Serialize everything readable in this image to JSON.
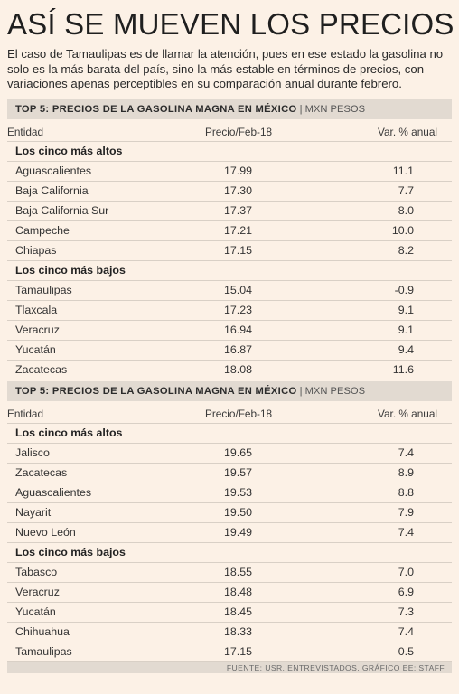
{
  "title": "ASÍ SE MUEVEN LOS PRECIOS",
  "intro": "El caso de Tamaulipas es de llamar la atención, pues en ese estado la gasolina no solo es la más barata del país, sino la más estable en términos de precios, con variaciones apenas perceptibles en su comparación anual durante febrero.",
  "tables": [
    {
      "heading": "TOP 5: PRECIOS DE LA GASOLINA MAGNA EN MÉXICO",
      "unit": "MXN PESOS",
      "col_entidad": "Entidad",
      "col_precio": "Precio/Feb-18",
      "col_var": "Var. % anual",
      "group_high": "Los cinco más altos",
      "high": [
        {
          "entidad": "Aguascalientes",
          "precio": "17.99",
          "var": "11.1"
        },
        {
          "entidad": "Baja California",
          "precio": "17.30",
          "var": "7.7"
        },
        {
          "entidad": "Baja California Sur",
          "precio": "17.37",
          "var": "8.0"
        },
        {
          "entidad": "Campeche",
          "precio": "17.21",
          "var": "10.0"
        },
        {
          "entidad": "Chiapas",
          "precio": "17.15",
          "var": "8.2"
        }
      ],
      "group_low": "Los cinco más bajos",
      "low": [
        {
          "entidad": "Tamaulipas",
          "precio": "15.04",
          "var": "-0.9"
        },
        {
          "entidad": "Tlaxcala",
          "precio": "17.23",
          "var": "9.1"
        },
        {
          "entidad": "Veracruz",
          "precio": "16.94",
          "var": "9.1"
        },
        {
          "entidad": "Yucatán",
          "precio": "16.87",
          "var": "9.4"
        },
        {
          "entidad": "Zacatecas",
          "precio": "18.08",
          "var": "11.6"
        }
      ]
    },
    {
      "heading": "TOP 5: PRECIOS DE LA GASOLINA MAGNA EN MÉXICO",
      "unit": "MXN PESOS",
      "col_entidad": "Entidad",
      "col_precio": "Precio/Feb-18",
      "col_var": "Var. % anual",
      "group_high": "Los cinco más altos",
      "high": [
        {
          "entidad": "Jalisco",
          "precio": "19.65",
          "var": "7.4"
        },
        {
          "entidad": "Zacatecas",
          "precio": "19.57",
          "var": "8.9"
        },
        {
          "entidad": "Aguascalientes",
          "precio": "19.53",
          "var": "8.8"
        },
        {
          "entidad": "Nayarit",
          "precio": "19.50",
          "var": "7.9"
        },
        {
          "entidad": "Nuevo León",
          "precio": "19.49",
          "var": "7.4"
        }
      ],
      "group_low": "Los cinco más bajos",
      "low": [
        {
          "entidad": "Tabasco",
          "precio": "18.55",
          "var": "7.0"
        },
        {
          "entidad": "Veracruz",
          "precio": "18.48",
          "var": "6.9"
        },
        {
          "entidad": "Yucatán",
          "precio": "18.45",
          "var": "7.3"
        },
        {
          "entidad": "Chihuahua",
          "precio": "18.33",
          "var": "7.4"
        },
        {
          "entidad": "Tamaulipas",
          "precio": "17.15",
          "var": "0.5"
        }
      ]
    }
  ],
  "footer": "FUENTE: USR, ENTREVISTADOS. GRÁFICO EE: STAFF"
}
